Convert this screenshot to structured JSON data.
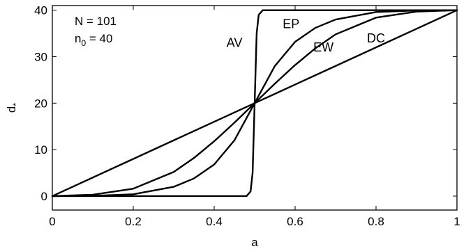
{
  "chart_data": {
    "type": "line",
    "title": "",
    "xlabel": "a",
    "ylabel": {
      "main": "d",
      "sub": "*"
    },
    "xlim": [
      0,
      1
    ],
    "ylim": [
      -3,
      41
    ],
    "grid": false,
    "x_ticks": [
      {
        "value": 0,
        "label": "0"
      },
      {
        "value": 0.2,
        "label": "0.2"
      },
      {
        "value": 0.4,
        "label": "0.4"
      },
      {
        "value": 0.6,
        "label": "0.6"
      },
      {
        "value": 0.8,
        "label": "0.8"
      },
      {
        "value": 1,
        "label": "1"
      }
    ],
    "y_ticks": [
      {
        "value": 0,
        "label": "0"
      },
      {
        "value": 10,
        "label": "10"
      },
      {
        "value": 20,
        "label": "20"
      },
      {
        "value": 30,
        "label": "30"
      },
      {
        "value": 40,
        "label": "40"
      }
    ],
    "annotations": [
      {
        "id": "N",
        "text": "N = 101"
      },
      {
        "id": "n0",
        "main": "n",
        "sub": "0",
        "rest": " = 40"
      }
    ],
    "series": [
      {
        "name": "DC",
        "label": {
          "text": "DC",
          "x": 0.8,
          "y": 34
        },
        "x": [
          0,
          0.1,
          0.2,
          0.3,
          0.4,
          0.5,
          0.6,
          0.7,
          0.8,
          0.9,
          1
        ],
        "y": [
          0,
          4,
          8,
          12,
          16,
          20,
          24,
          28,
          32,
          36,
          40
        ]
      },
      {
        "name": "EW",
        "label": {
          "text": "EW",
          "x": 0.67,
          "y": 32
        },
        "x": [
          0,
          0.1,
          0.2,
          0.3,
          0.35,
          0.4,
          0.45,
          0.5,
          0.55,
          0.6,
          0.65,
          0.7,
          0.8,
          0.9,
          1
        ],
        "y": [
          0,
          0.3,
          1.6,
          5.2,
          8.2,
          11.8,
          15.8,
          20,
          24.2,
          28.2,
          31.8,
          34.8,
          38.4,
          39.7,
          40
        ]
      },
      {
        "name": "EP",
        "label": {
          "text": "EP",
          "x": 0.59,
          "y": 37
        },
        "x": [
          0,
          0.1,
          0.2,
          0.3,
          0.35,
          0.4,
          0.45,
          0.5,
          0.55,
          0.6,
          0.65,
          0.7,
          0.8,
          0.9,
          1
        ],
        "y": [
          0,
          0.05,
          0.4,
          2,
          3.8,
          6.8,
          12,
          20,
          28,
          33.2,
          36.2,
          38,
          39.6,
          39.95,
          40
        ]
      },
      {
        "name": "AV",
        "label": {
          "text": "AV",
          "x": 0.45,
          "y": 33
        },
        "x": [
          0,
          0.2,
          0.4,
          0.48,
          0.49,
          0.495,
          0.5,
          0.505,
          0.51,
          0.52,
          0.6,
          0.8,
          1
        ],
        "y": [
          0,
          0,
          0,
          0,
          1,
          5,
          20,
          35,
          39,
          40,
          40,
          40,
          40
        ]
      }
    ]
  }
}
